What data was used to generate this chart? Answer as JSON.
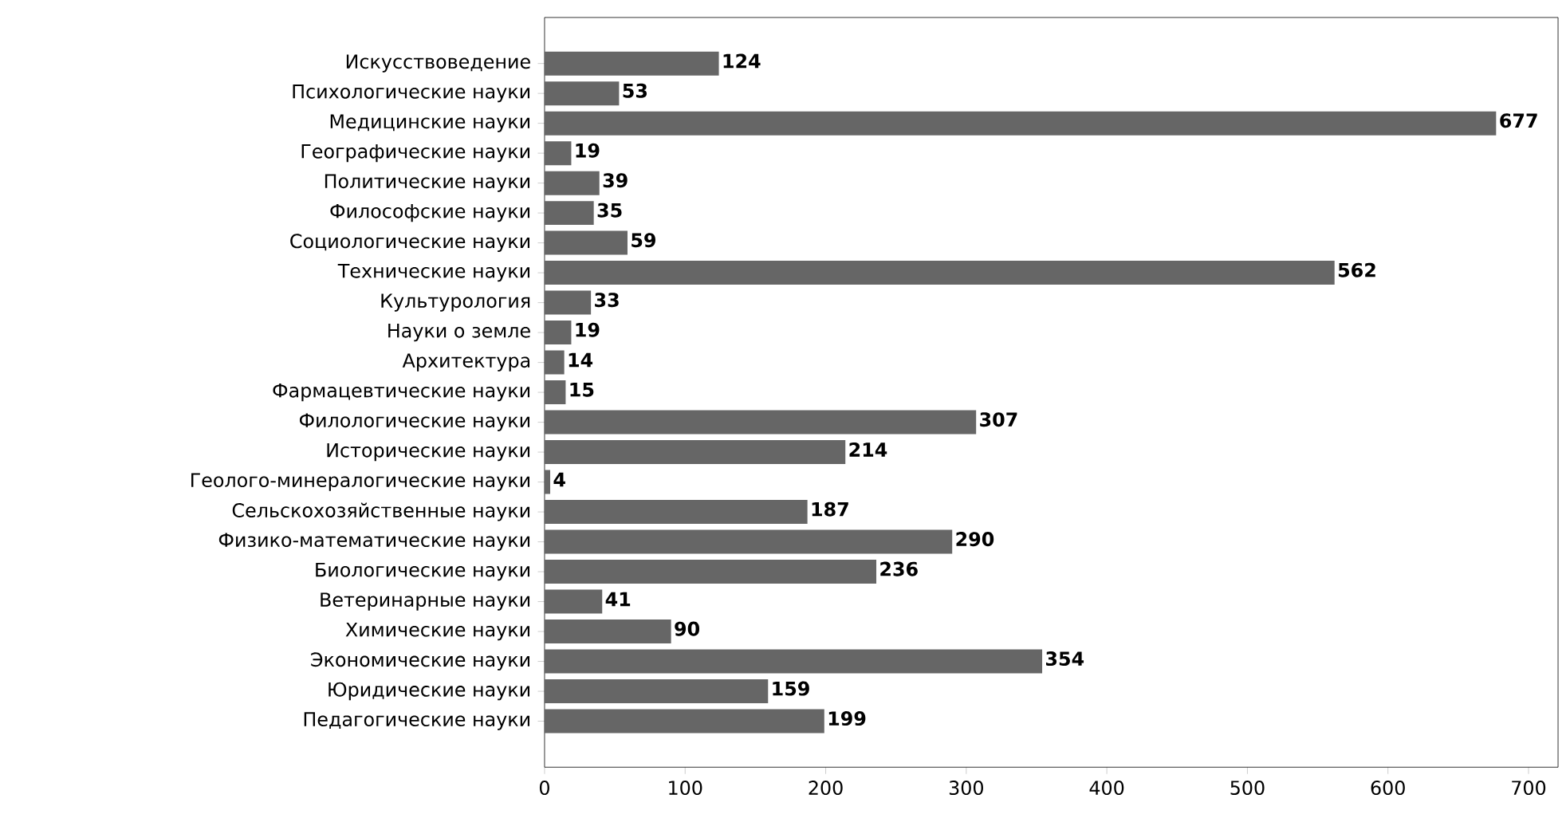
{
  "chart_data": {
    "type": "bar",
    "orientation": "horizontal",
    "categories": [
      "Искусствоведение",
      "Психологические науки",
      "Медицинские науки",
      "Географические науки",
      "Политические науки",
      "Философские науки",
      "Социологические науки",
      "Технические науки",
      "Культурология",
      "Науки о земле",
      "Архитектура",
      "Фармацевтические науки",
      "Филологические науки",
      "Исторические науки",
      "Геолого-минералогические науки",
      "Сельскохозяйственные науки",
      "Физико-математические науки",
      "Биологические науки",
      "Ветеринарные науки",
      "Химические науки",
      "Экономические науки",
      "Юридические науки",
      "Педагогические науки"
    ],
    "values": [
      124,
      53,
      677,
      19,
      39,
      35,
      59,
      562,
      33,
      19,
      14,
      15,
      307,
      214,
      4,
      187,
      290,
      236,
      41,
      90,
      354,
      159,
      199
    ],
    "color": "#666666",
    "xlim": [
      0,
      721
    ],
    "xticks": [
      0,
      100,
      200,
      300,
      400,
      500,
      600,
      700
    ],
    "data_labels": true
  }
}
